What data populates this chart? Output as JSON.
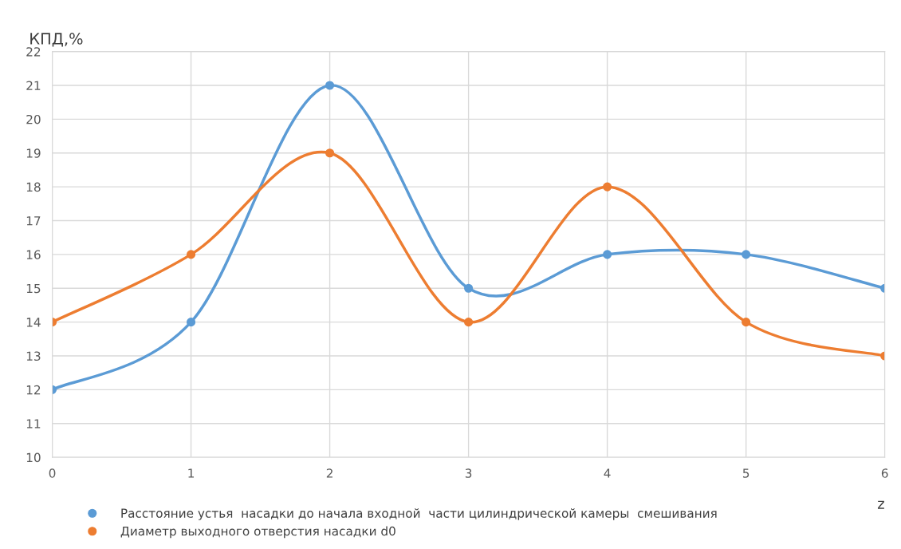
{
  "chart_data": {
    "type": "line",
    "ylabel": "КПД,%",
    "xlabel": "z",
    "x": [
      0,
      1,
      2,
      3,
      4,
      5,
      6
    ],
    "xlim": [
      0,
      6
    ],
    "xticks": [
      0,
      1,
      2,
      3,
      4,
      5,
      6
    ],
    "ylim": [
      10,
      22
    ],
    "yticks": [
      10,
      11,
      12,
      13,
      14,
      15,
      16,
      17,
      18,
      19,
      20,
      21,
      22
    ],
    "grid": true,
    "legend": "bottom",
    "marker": "circle",
    "line_style": "solid",
    "series": [
      {
        "name": "Расстояние устья  насадки до начала входной  части цилиндрической камеры  смешивания",
        "color": "#5b9bd5",
        "values": [
          12,
          14,
          21,
          15,
          16,
          16,
          15
        ]
      },
      {
        "name": "Диаметр выходного отверстия насадки d0",
        "color": "#ed7d31",
        "values": [
          14,
          16,
          19,
          14,
          18,
          14,
          13
        ]
      }
    ]
  }
}
